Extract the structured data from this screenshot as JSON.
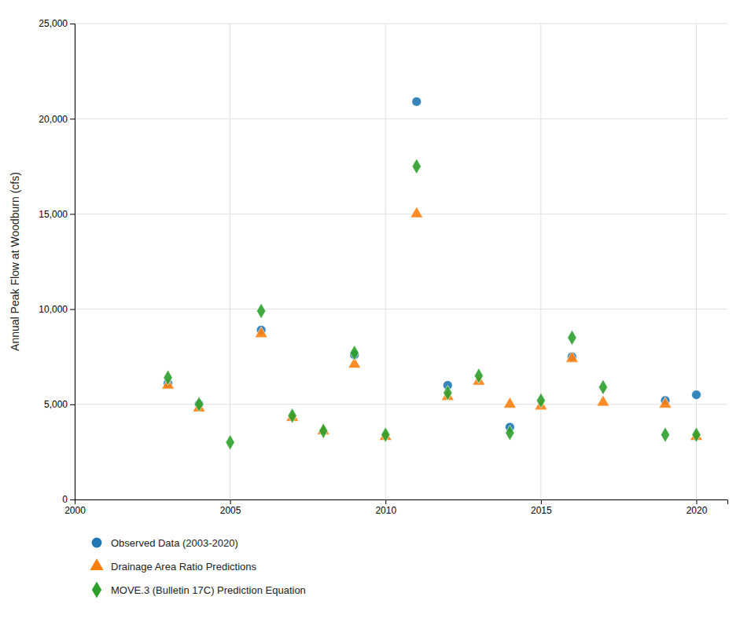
{
  "chart_data": {
    "type": "scatter",
    "ylabel": "Annual Peak Flow at Woodburn (cfs)",
    "xlim": [
      2000,
      2021
    ],
    "ylim": [
      0,
      25000
    ],
    "xticks": [
      2000,
      2005,
      2010,
      2015,
      2020
    ],
    "yticks": [
      0,
      {
        "value": 5000,
        "label": "5,000"
      },
      {
        "value": 10000,
        "label": "10,000"
      },
      {
        "value": 15000,
        "label": "15,000"
      },
      {
        "value": 20000,
        "label": "20,000"
      },
      {
        "value": 25000,
        "label": "25,000"
      }
    ],
    "grid": true,
    "legend": "bottom",
    "series": [
      {
        "name": "Observed Data (2003-2020)",
        "marker": "circle",
        "x": [
          2003,
          2004,
          2006,
          2009,
          2011,
          2012,
          2014,
          2016,
          2019,
          2020
        ],
        "values": [
          6100,
          5000,
          8900,
          7600,
          20900,
          6000,
          3800,
          7500,
          5200,
          5500
        ]
      },
      {
        "name": "Drainage Area Ratio Predictions",
        "marker": "triangle",
        "x": [
          2003,
          2004,
          2006,
          2007,
          2008,
          2009,
          2010,
          2011,
          2012,
          2013,
          2014,
          2015,
          2016,
          2017,
          2019,
          2020
        ],
        "values": [
          6000,
          4800,
          8700,
          4300,
          3600,
          7100,
          3300,
          15000,
          5400,
          6200,
          5000,
          4900,
          7400,
          5100,
          5000,
          3300
        ]
      },
      {
        "name": "MOVE.3 (Bulletin 17C) Prediction Equation",
        "marker": "diamond",
        "x": [
          2003,
          2004,
          2005,
          2006,
          2007,
          2008,
          2009,
          2010,
          2011,
          2012,
          2013,
          2014,
          2015,
          2016,
          2017,
          2019,
          2020
        ],
        "values": [
          6400,
          5000,
          3000,
          9900,
          4400,
          3600,
          7700,
          3400,
          17500,
          5600,
          6500,
          3500,
          5200,
          8500,
          5900,
          3400,
          3400
        ]
      }
    ]
  }
}
